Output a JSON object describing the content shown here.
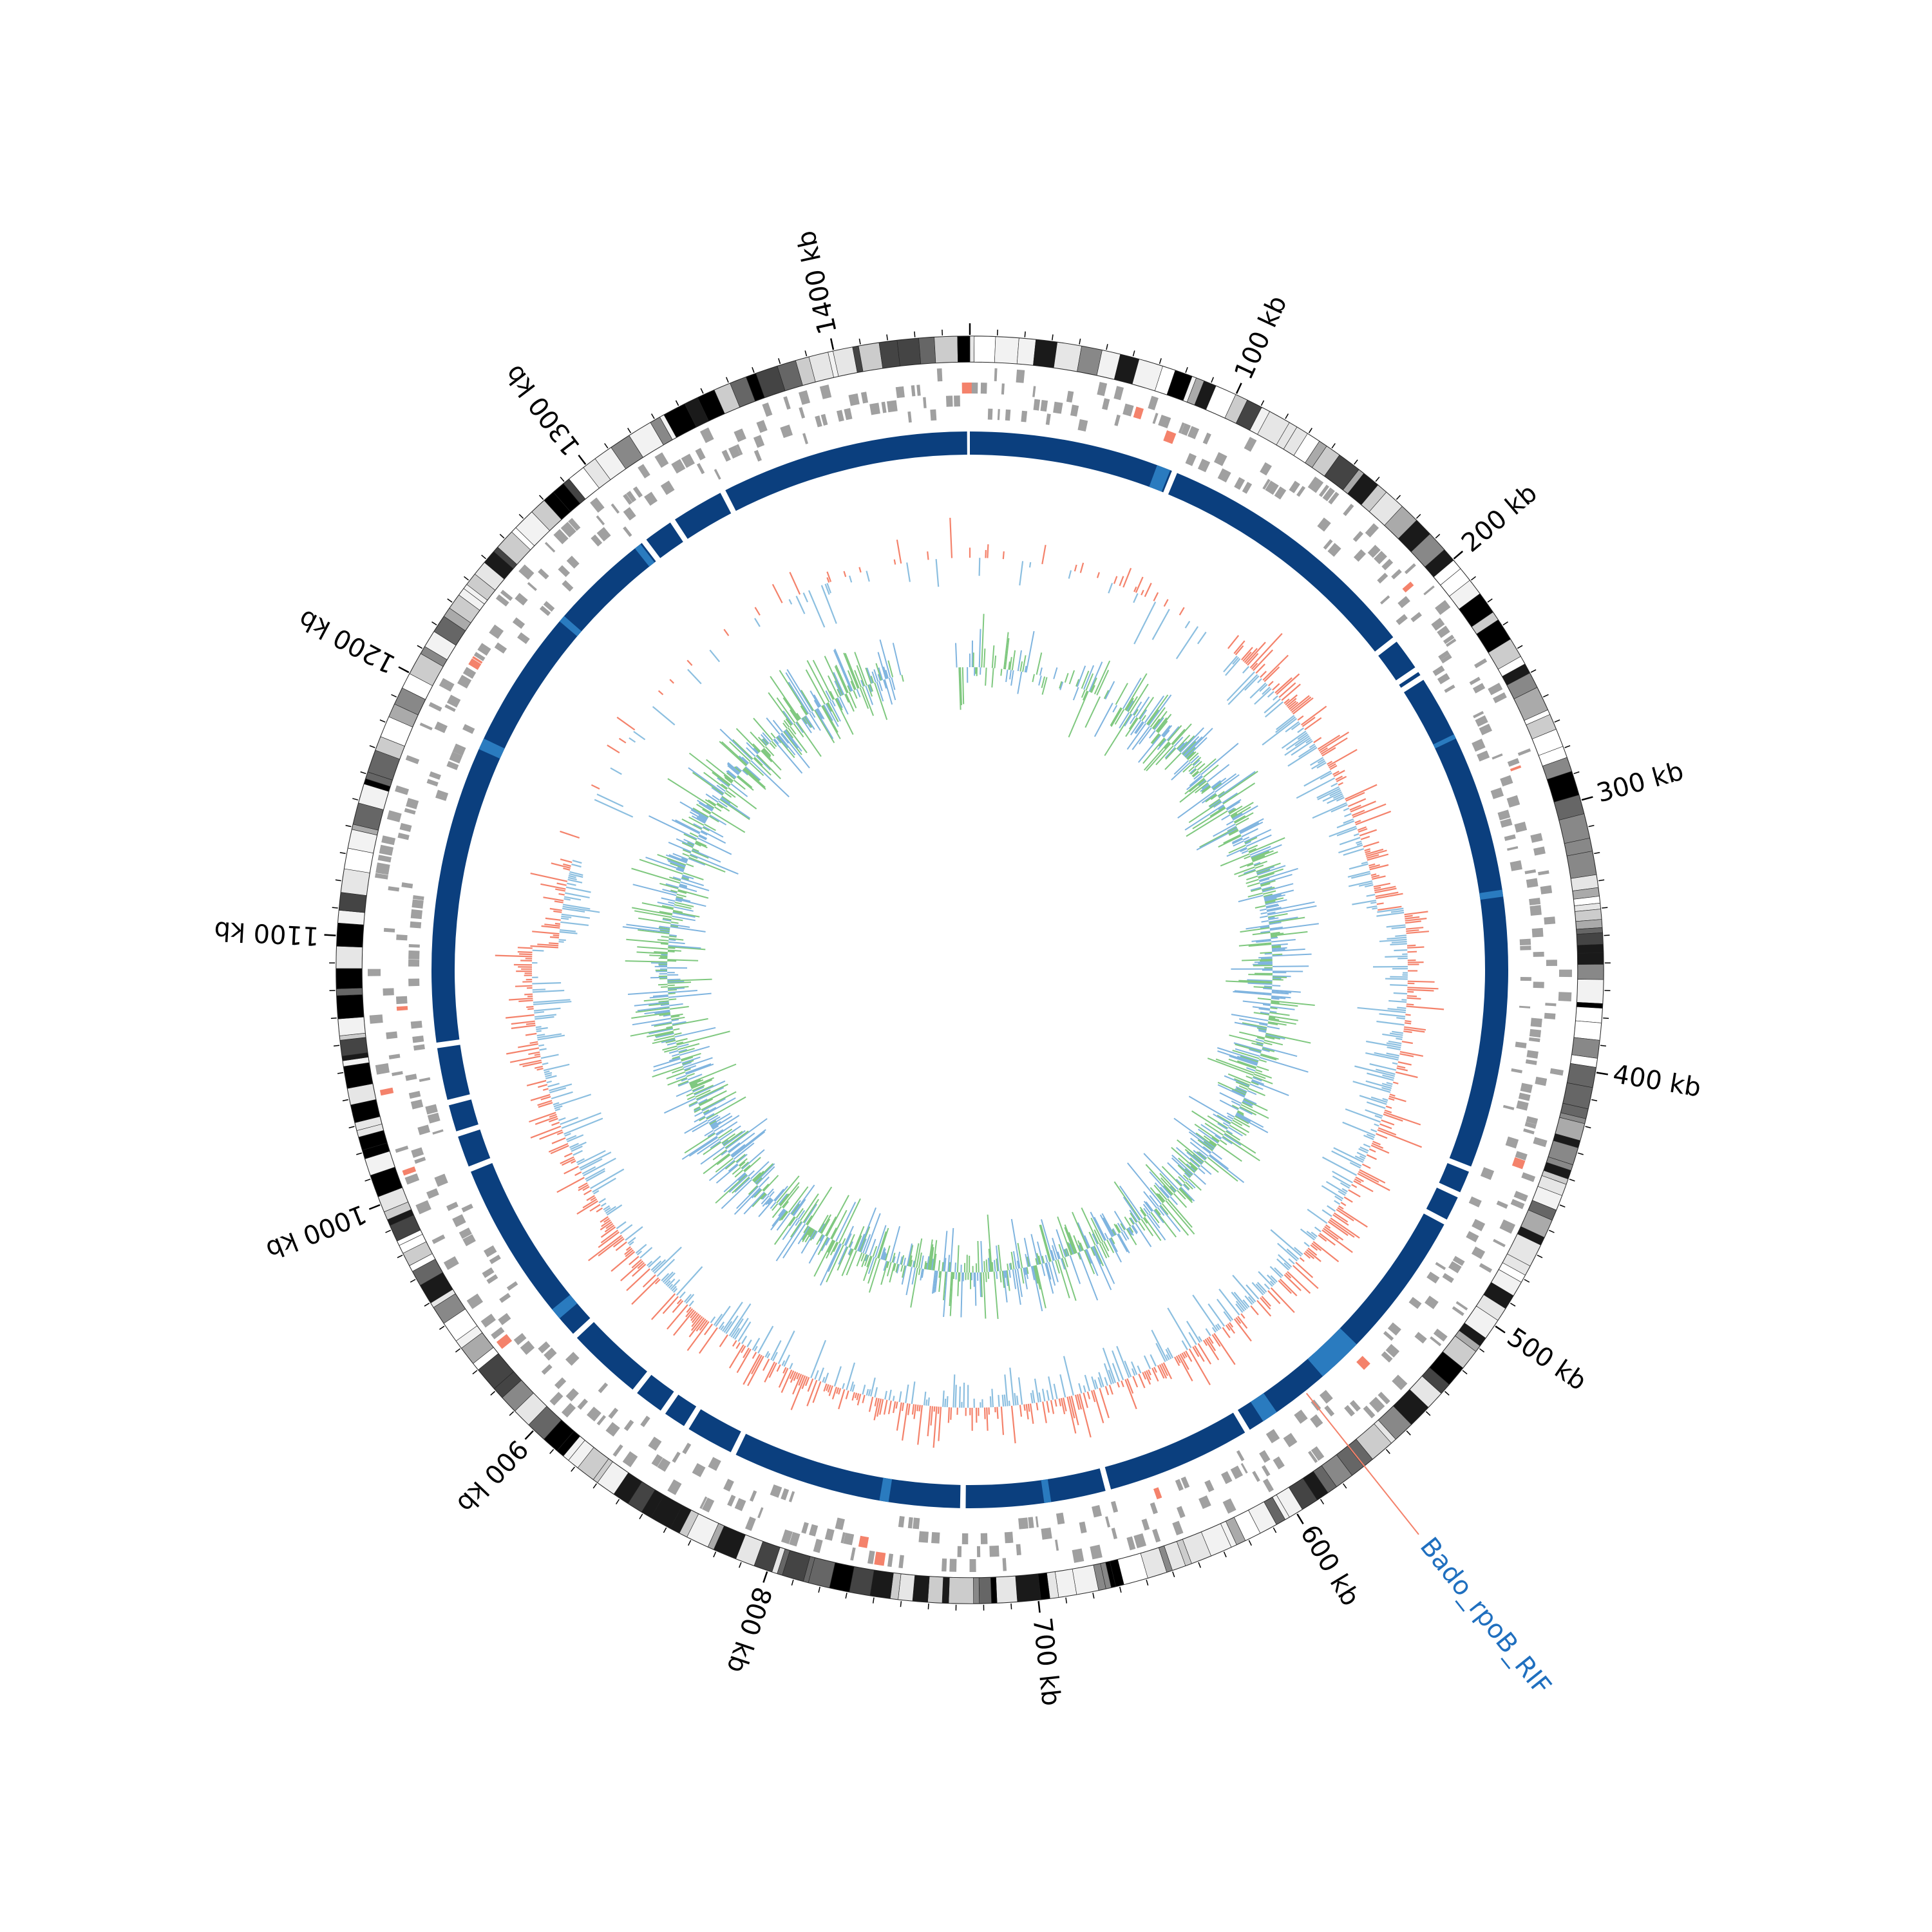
{
  "diagram": {
    "type": "circular-genome-map",
    "genome_length_kb": 1450,
    "ticks": [
      {
        "kb": 100,
        "label": "100 kb"
      },
      {
        "kb": 200,
        "label": "200 kb"
      },
      {
        "kb": 300,
        "label": "300 kb"
      },
      {
        "kb": 400,
        "label": "400 kb"
      },
      {
        "kb": 500,
        "label": "500 kb"
      },
      {
        "kb": 600,
        "label": "600 kb"
      },
      {
        "kb": 700,
        "label": "700 kb"
      },
      {
        "kb": 800,
        "label": "800 kb"
      },
      {
        "kb": 900,
        "label": "900 kb"
      },
      {
        "kb": 1000,
        "label": "1000 kb"
      },
      {
        "kb": 1100,
        "label": "1100 kb"
      },
      {
        "kb": 1200,
        "label": "1200 kb"
      },
      {
        "kb": 1300,
        "label": "1300 kb"
      },
      {
        "kb": 1400,
        "label": "1400 kb"
      }
    ],
    "annotation": {
      "label": "Bado_rpoB_RIF",
      "kb": 570
    },
    "gaps_kb": [
      90,
      210,
      226,
      230,
      450,
      462,
      475,
      555,
      600,
      665,
      728,
      830,
      853,
      865,
      880,
      915,
      1000,
      1016,
      1030,
      1055,
      1300,
      1315,
      1340
    ],
    "colors": {
      "ring_blue": "#0b3f7e",
      "ring_blue_light": "#2a7bbf",
      "label_blue": "#1f6fbf",
      "annotation_line": "#f4826b",
      "feature_grey": "#a0a0a0",
      "skew_red": "#f4826b",
      "skew_blue": "#8cbfe0",
      "gc_green": "#7fc87f",
      "gc_blue": "#7fb4df"
    }
  }
}
